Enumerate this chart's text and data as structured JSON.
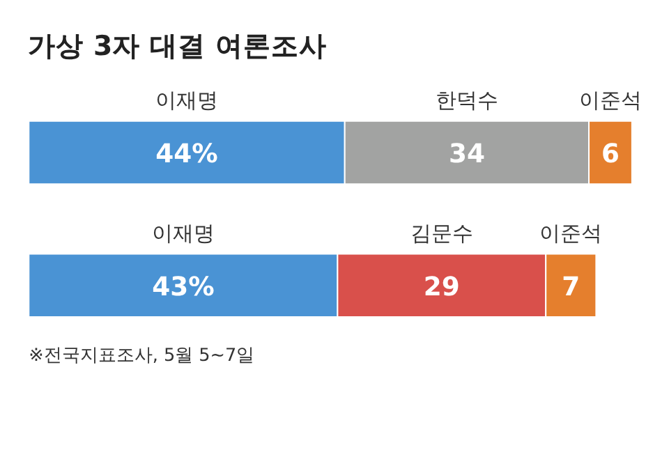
{
  "chart_data": [
    {
      "type": "bar",
      "orientation": "horizontal",
      "stacked": true,
      "title": "가상 3자 대결 여론조사",
      "categories": [
        null
      ],
      "series": [
        {
          "name": "이재명",
          "color": "#4a93d4",
          "values": [
            44
          ],
          "value_labels": [
            "44%"
          ]
        },
        {
          "name": "한덕수",
          "color": "#a2a3a2",
          "values": [
            34
          ],
          "value_labels": [
            "34"
          ]
        },
        {
          "name": "이준석",
          "color": "#e57f2d",
          "values": [
            6
          ],
          "value_labels": [
            "6"
          ]
        }
      ]
    },
    {
      "type": "bar",
      "orientation": "horizontal",
      "stacked": true,
      "categories": [
        null
      ],
      "annotations": [
        "※전국지표조사, 5월 5~7일"
      ],
      "series": [
        {
          "name": "이재명",
          "color": "#4a93d4",
          "values": [
            43
          ],
          "value_labels": [
            "43%"
          ]
        },
        {
          "name": "김문수",
          "color": "#d9504b",
          "values": [
            29
          ],
          "value_labels": [
            "29"
          ]
        },
        {
          "name": "이준석",
          "color": "#e57f2d",
          "values": [
            7
          ],
          "value_labels": [
            "7"
          ]
        }
      ]
    }
  ]
}
